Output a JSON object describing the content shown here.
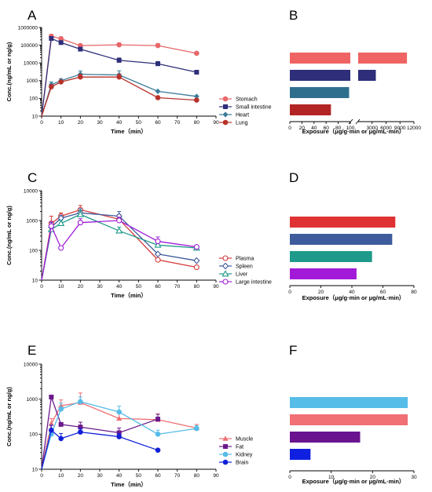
{
  "chart_data": [
    {
      "id": "A",
      "type": "line",
      "ylog": true,
      "panel_label": "A",
      "xlabel": "Time（min）",
      "ylabel": "Conc.(ng/mL or ng/g)",
      "xlim": [
        0,
        90
      ],
      "ylim": [
        10,
        1000000
      ],
      "xticks": [
        "0",
        "10",
        "20",
        "30",
        "40",
        "50",
        "60",
        "70",
        "80",
        "90"
      ],
      "yticks": [
        "10",
        "100",
        "1000",
        "10000",
        "100000",
        "1000000"
      ],
      "legend_position": "bottom-right",
      "series": [
        {
          "name": "Stomach",
          "color": "#e8666a",
          "marker": "circle",
          "x": [
            0,
            5,
            10,
            20,
            40,
            60,
            80
          ],
          "y": [
            10,
            320000,
            230000,
            95000,
            105000,
            95000,
            35000
          ],
          "err": [
            0,
            90000,
            70000,
            0,
            30000,
            30000,
            0
          ]
        },
        {
          "name": "Small intestine",
          "color": "#2e2e7a",
          "marker": "square",
          "x": [
            0,
            5,
            10,
            20,
            40,
            60,
            80
          ],
          "y": [
            10,
            240000,
            140000,
            60000,
            14000,
            9000,
            3000
          ],
          "err": [
            0,
            60000,
            40000,
            12000,
            5000,
            3000,
            800
          ]
        },
        {
          "name": "Heart",
          "color": "#3a7a9a",
          "marker": "diamond",
          "x": [
            0,
            5,
            10,
            20,
            40,
            60,
            80
          ],
          "y": [
            10,
            600,
            1000,
            2300,
            2100,
            250,
            130
          ],
          "err": [
            0,
            250,
            300,
            1200,
            1500,
            0,
            0
          ]
        },
        {
          "name": "Lung",
          "color": "#b8322a",
          "marker": "circle",
          "x": [
            0,
            5,
            10,
            20,
            40,
            60,
            80
          ],
          "y": [
            10,
            450,
            850,
            1600,
            1600,
            110,
            80
          ],
          "err": [
            0,
            150,
            200,
            700,
            800,
            0,
            0
          ]
        }
      ]
    },
    {
      "id": "B",
      "type": "bar",
      "horizontal": true,
      "broken_axis": true,
      "panel_label": "B",
      "xlabel": "Exposure（μg/g·min or μg/mL·min）",
      "xticks": [
        "0",
        "20",
        "40",
        "60",
        "80",
        "100",
        "3000",
        "6000",
        "9000",
        "12000"
      ],
      "categories": [
        "Stomach",
        "Small intestine",
        "Heart",
        "Lung"
      ],
      "colors": [
        "#ef6462",
        "#2e2e7a",
        "#2e6f8e",
        "#b32424"
      ],
      "values": [
        10500,
        3800,
        98,
        68
      ]
    },
    {
      "id": "C",
      "type": "line",
      "ylog": true,
      "panel_label": "C",
      "xlabel": "Time（min）",
      "ylabel": "Conc.(ng/mL or ng/g)",
      "xlim": [
        0,
        90
      ],
      "ylim": [
        10,
        10000
      ],
      "xticks": [
        "0",
        "10",
        "20",
        "30",
        "40",
        "50",
        "60",
        "70",
        "80",
        "90"
      ],
      "yticks": [
        "10",
        "100",
        "1000",
        "10000"
      ],
      "legend_position": "bottom-right",
      "series": [
        {
          "name": "Plasma",
          "color": "#d63a3a",
          "marker": "circle-open",
          "x": [
            0,
            5,
            10,
            20,
            40,
            60,
            80
          ],
          "y": [
            10,
            800,
            1400,
            2300,
            1100,
            48,
            27
          ],
          "err": [
            0,
            600,
            400,
            900,
            500,
            0,
            0
          ]
        },
        {
          "name": "Spleen",
          "color": "#3e5a9a",
          "marker": "diamond-open",
          "x": [
            0,
            5,
            10,
            20,
            40,
            60,
            80
          ],
          "y": [
            10,
            600,
            1200,
            1800,
            1400,
            75,
            45
          ],
          "err": [
            0,
            250,
            300,
            700,
            600,
            0,
            0
          ]
        },
        {
          "name": "Liver",
          "color": "#1f9a8a",
          "marker": "triangle-open",
          "x": [
            0,
            5,
            10,
            20,
            40,
            60,
            80
          ],
          "y": [
            10,
            500,
            800,
            1600,
            450,
            150,
            120
          ],
          "err": [
            0,
            200,
            200,
            600,
            150,
            50,
            0
          ]
        },
        {
          "name": "Large intestine",
          "color": "#a020d8",
          "marker": "circle-open",
          "x": [
            0,
            5,
            10,
            20,
            40,
            60,
            80
          ],
          "y": [
            10,
            650,
            120,
            850,
            1000,
            200,
            130
          ],
          "err": [
            0,
            250,
            0,
            300,
            300,
            80,
            0
          ]
        }
      ]
    },
    {
      "id": "D",
      "type": "bar",
      "horizontal": true,
      "panel_label": "D",
      "xlabel": "Exposure（μg/g·min or μg/mL·min）",
      "xlim": [
        0,
        80
      ],
      "xticks": [
        "0",
        "20",
        "40",
        "60",
        "80"
      ],
      "categories": [
        "Plasma",
        "Spleen",
        "Liver",
        "Large intestine"
      ],
      "colors": [
        "#e03232",
        "#3e5c9c",
        "#1f9a8a",
        "#a21ad8"
      ],
      "values": [
        68,
        66,
        53,
        43
      ]
    },
    {
      "id": "E",
      "type": "line",
      "ylog": true,
      "panel_label": "E",
      "xlabel": "Time（min）",
      "ylabel": "Conc.(ng/mL or ng/g)",
      "xlim": [
        0,
        90
      ],
      "ylim": [
        10,
        10000
      ],
      "xticks": [
        "0",
        "10",
        "20",
        "30",
        "40",
        "50",
        "60",
        "70",
        "80",
        "90"
      ],
      "yticks": [
        "10",
        "100",
        "1000",
        "10000"
      ],
      "legend_position": "bottom-right",
      "series": [
        {
          "name": "Muscle",
          "color": "#ee6e74",
          "marker": "triangle",
          "x": [
            0,
            5,
            10,
            20,
            40,
            60,
            80
          ],
          "y": [
            10,
            200,
            650,
            800,
            280,
            260,
            150
          ],
          "err": [
            0,
            80,
            300,
            700,
            150,
            120,
            40
          ]
        },
        {
          "name": "Fat",
          "color": "#6a1a8a",
          "marker": "square",
          "x": [
            0,
            5,
            10,
            20,
            40,
            60
          ],
          "y": [
            10,
            1150,
            190,
            160,
            110,
            270
          ],
          "err": [
            0,
            0,
            0,
            60,
            40,
            100
          ]
        },
        {
          "name": "Kidney",
          "color": "#56bce8",
          "marker": "circle",
          "x": [
            0,
            5,
            10,
            20,
            40,
            60,
            80
          ],
          "y": [
            10,
            100,
            520,
            850,
            430,
            100,
            145
          ],
          "err": [
            0,
            40,
            250,
            300,
            200,
            30,
            30
          ]
        },
        {
          "name": "Brain",
          "color": "#1020d8",
          "marker": "circle",
          "x": [
            0,
            5,
            10,
            20,
            40,
            60
          ],
          "y": [
            10,
            130,
            75,
            115,
            85,
            35
          ],
          "err": [
            0,
            50,
            30,
            30,
            20,
            0
          ]
        }
      ]
    },
    {
      "id": "F",
      "type": "bar",
      "horizontal": true,
      "panel_label": "F",
      "xlabel": "Exposure（μg/g·min or μg/mL·min）",
      "xlim": [
        0,
        30
      ],
      "xticks": [
        "0",
        "10",
        "20",
        "30"
      ],
      "categories": [
        "Kidney",
        "Muscle",
        "Fat",
        "Brain"
      ],
      "colors": [
        "#56bce8",
        "#f07076",
        "#6a1490",
        "#1020e0"
      ],
      "values": [
        28.5,
        28.5,
        17,
        5
      ]
    }
  ]
}
